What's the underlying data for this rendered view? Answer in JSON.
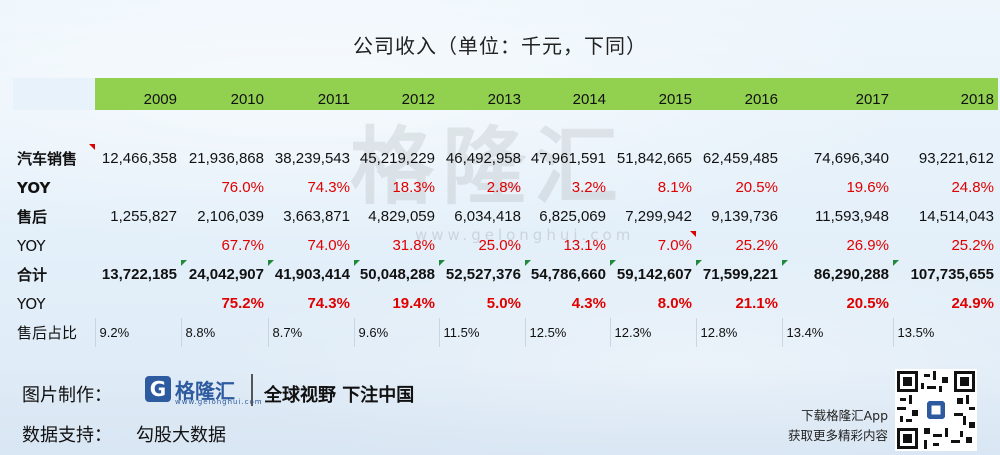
{
  "title": "公司收入（单位：千元，下同）",
  "watermark": "格隆汇",
  "watermark_url": "www.gelonghui.com",
  "years": [
    "2009",
    "2010",
    "2011",
    "2012",
    "2013",
    "2014",
    "2015",
    "2016",
    "2017",
    "2018"
  ],
  "rows": {
    "auto_sales": {
      "label": "汽车销售",
      "values": [
        "12,466,358",
        "21,936,868",
        "38,239,543",
        "45,219,229",
        "46,492,958",
        "47,961,591",
        "51,842,665",
        "62,459,485",
        "74,696,340",
        "93,221,612"
      ]
    },
    "auto_yoy": {
      "label": "YOY",
      "values": [
        "",
        "76.0%",
        "74.3%",
        "18.3%",
        "2.8%",
        "3.2%",
        "8.1%",
        "20.5%",
        "19.6%",
        "24.8%"
      ]
    },
    "aftersales": {
      "label": "售后",
      "values": [
        "1,255,827",
        "2,106,039",
        "3,663,871",
        "4,829,059",
        "6,034,418",
        "6,825,069",
        "7,299,942",
        "9,139,736",
        "11,593,948",
        "14,514,043"
      ]
    },
    "after_yoy": {
      "label": "YOY",
      "values": [
        "",
        "67.7%",
        "74.0%",
        "31.8%",
        "25.0%",
        "13.1%",
        "7.0%",
        "25.2%",
        "26.9%",
        "25.2%"
      ]
    },
    "total": {
      "label": "合计",
      "values": [
        "13,722,185",
        "24,042,907",
        "41,903,414",
        "50,048,288",
        "52,527,376",
        "54,786,660",
        "59,142,607",
        "71,599,221",
        "86,290,288",
        "107,735,655"
      ]
    },
    "total_yoy": {
      "label": "YOY",
      "values": [
        "",
        "75.2%",
        "74.3%",
        "19.4%",
        "5.0%",
        "4.3%",
        "8.0%",
        "21.1%",
        "20.5%",
        "24.9%"
      ]
    },
    "after_share": {
      "label": "售后占比",
      "values": [
        "9.2%",
        "8.8%",
        "8.7%",
        "9.6%",
        "11.5%",
        "12.5%",
        "12.3%",
        "12.8%",
        "13.4%",
        "13.5%"
      ]
    }
  },
  "footer": {
    "made_by_label": "图片制作：",
    "logo_icon": "G",
    "logo_name": "格隆汇",
    "logo_url": "www.gelonghui.com",
    "slogan": "全球视野 下注中国",
    "source_label": "数据支持：",
    "source_value": "勾股大数据",
    "app_line1": "下载格隆汇App",
    "app_line2": "获取更多精彩内容"
  },
  "colors": {
    "header_green": "#92d050",
    "red_text": "#e00000",
    "logo_blue": "#2e5a9f"
  }
}
